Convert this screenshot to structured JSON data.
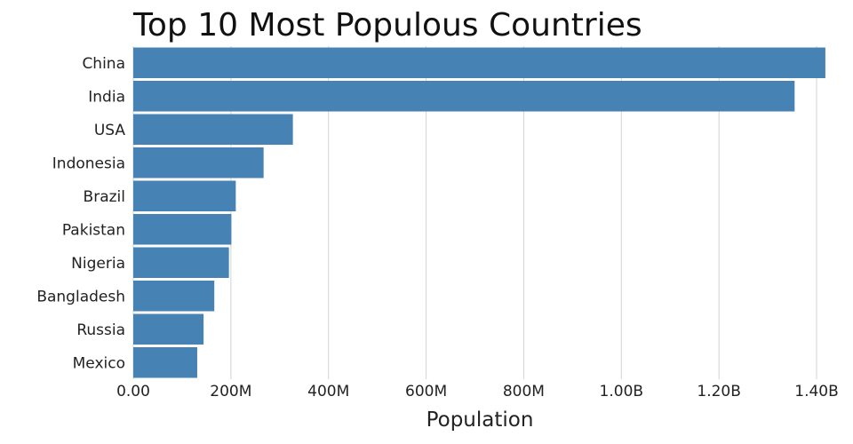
{
  "chart_data": {
    "type": "bar",
    "orientation": "horizontal",
    "title": "Top 10 Most Populous Countries",
    "xlabel": "Population",
    "ylabel": "",
    "categories": [
      "China",
      "India",
      "USA",
      "Indonesia",
      "Brazil",
      "Pakistan",
      "Nigeria",
      "Bangladesh",
      "Russia",
      "Mexico"
    ],
    "values": [
      1418000000,
      1355000000,
      327000000,
      267000000,
      210000000,
      201000000,
      196000000,
      166000000,
      144000000,
      131000000
    ],
    "xlim": [
      0,
      1420000000
    ],
    "x_ticks": [
      0,
      200000000,
      400000000,
      600000000,
      800000000,
      1000000000,
      1200000000,
      1400000000
    ],
    "x_tick_labels": [
      "0.00",
      "200M",
      "400M",
      "600M",
      "800M",
      "1.00B",
      "1.20B",
      "1.40B"
    ],
    "grid": "vertical",
    "legend": "none",
    "bar_color": "#4682b4",
    "grid_color": "#d3d3d3"
  }
}
